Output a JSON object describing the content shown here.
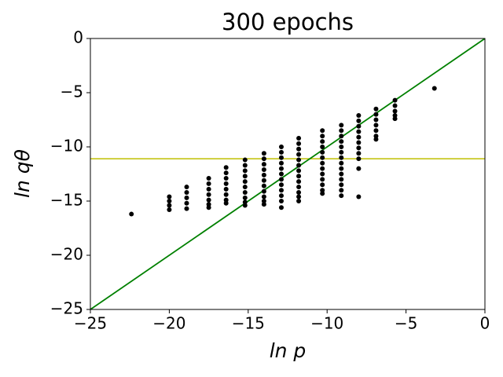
{
  "chart_data": {
    "type": "scatter",
    "title": "300 epochs",
    "xlabel": "ln p",
    "ylabel": "ln qθ",
    "xlim": [
      -25,
      0
    ],
    "ylim": [
      -25,
      0
    ],
    "xticks": [
      {
        "value": -25,
        "label": "−25"
      },
      {
        "value": -20,
        "label": "−20"
      },
      {
        "value": -15,
        "label": "−15"
      },
      {
        "value": -10,
        "label": "−10"
      },
      {
        "value": -5,
        "label": "−5"
      },
      0
    ],
    "yticks": [
      {
        "value": -25,
        "label": "−25"
      },
      {
        "value": -20,
        "label": "−20"
      },
      {
        "value": -15,
        "label": "−15"
      },
      {
        "value": -10,
        "label": "−10"
      },
      {
        "value": -5,
        "label": "−5"
      },
      0
    ],
    "series": [
      {
        "color": "#000000",
        "x": [
          -22.4
        ],
        "values": [
          -16.2
        ]
      },
      {
        "color": "#000000",
        "x": [
          -20.0,
          -20.0,
          -20.0,
          -20.0
        ],
        "values": [
          -14.6,
          -15.0,
          -15.4,
          -15.8
        ]
      },
      {
        "color": "#000000",
        "x": [
          -18.9,
          -18.9,
          -18.9,
          -18.9,
          -18.9
        ],
        "values": [
          -13.7,
          -14.2,
          -14.7,
          -15.2,
          -15.7
        ]
      },
      {
        "color": "#000000",
        "x": [
          -17.5,
          -17.5,
          -17.5,
          -17.5,
          -17.5,
          -17.5,
          -17.5
        ],
        "values": [
          -12.9,
          -13.4,
          -13.9,
          -14.4,
          -14.9,
          -15.3,
          -15.6
        ]
      },
      {
        "color": "#000000",
        "x": [
          -16.4,
          -16.4,
          -16.4,
          -16.4,
          -16.4,
          -16.4,
          -16.4,
          -16.4
        ],
        "values": [
          -11.9,
          -12.4,
          -12.9,
          -13.4,
          -13.9,
          -14.4,
          -14.9,
          -15.2
        ]
      },
      {
        "color": "#000000",
        "x": [
          -15.2,
          -15.2,
          -15.2,
          -15.2,
          -15.2,
          -15.2,
          -15.2,
          -15.2,
          -15.2,
          -15.2
        ],
        "values": [
          -11.2,
          -11.7,
          -12.2,
          -12.7,
          -13.2,
          -13.7,
          -14.2,
          -14.7,
          -15.1,
          -15.4
        ]
      },
      {
        "color": "#000000",
        "x": [
          -14.0,
          -14.0,
          -14.0,
          -14.0,
          -14.0,
          -14.0,
          -14.0,
          -14.0,
          -14.0,
          -14.0,
          -14.0
        ],
        "values": [
          -10.6,
          -11.1,
          -11.6,
          -12.1,
          -12.6,
          -13.1,
          -13.6,
          -14.1,
          -14.6,
          -15.0,
          -15.3
        ]
      },
      {
        "color": "#000000",
        "x": [
          -12.9,
          -12.9,
          -12.9,
          -12.9,
          -12.9,
          -12.9,
          -12.9,
          -12.9,
          -12.9,
          -12.9,
          -12.9,
          -12.9
        ],
        "values": [
          -10.0,
          -10.5,
          -11.0,
          -11.5,
          -12.0,
          -12.5,
          -13.0,
          -13.5,
          -14.0,
          -14.5,
          -15.0,
          -15.6
        ]
      },
      {
        "color": "#000000",
        "x": [
          -11.8,
          -11.8,
          -11.8,
          -11.8,
          -11.8,
          -11.8,
          -11.8,
          -11.8,
          -11.8,
          -11.8,
          -11.8,
          -11.8,
          -11.8
        ],
        "values": [
          -9.2,
          -9.7,
          -10.2,
          -10.7,
          -11.2,
          -11.7,
          -12.2,
          -12.7,
          -13.2,
          -13.7,
          -14.2,
          -14.6,
          -15.0
        ]
      },
      {
        "color": "#000000",
        "x": [
          -10.3,
          -10.3,
          -10.3,
          -10.3,
          -10.3,
          -10.3,
          -10.3,
          -10.3,
          -10.3,
          -10.3,
          -10.3,
          -10.3,
          -10.3
        ],
        "values": [
          -8.5,
          -9.0,
          -9.5,
          -10.0,
          -10.5,
          -11.0,
          -11.5,
          -12.0,
          -12.5,
          -13.0,
          -13.5,
          -14.0,
          -14.3
        ]
      },
      {
        "color": "#000000",
        "x": [
          -9.1,
          -9.1,
          -9.1,
          -9.1,
          -9.1,
          -9.1,
          -9.1,
          -9.1,
          -9.1,
          -9.1,
          -9.1,
          -9.1,
          -9.1,
          -9.1
        ],
        "values": [
          -8.0,
          -8.5,
          -9.0,
          -9.5,
          -10.0,
          -10.5,
          -11.0,
          -11.5,
          -12.0,
          -12.5,
          -13.0,
          -13.5,
          -14.0,
          -14.5
        ]
      },
      {
        "color": "#000000",
        "x": [
          -8.0,
          -8.0,
          -8.0,
          -8.0,
          -8.0,
          -8.0,
          -8.0,
          -8.0,
          -8.0,
          -8.0,
          -8.0
        ],
        "values": [
          -7.1,
          -7.6,
          -8.1,
          -8.6,
          -9.1,
          -9.6,
          -10.1,
          -10.6,
          -11.1,
          -12.0,
          -14.6
        ]
      },
      {
        "color": "#000000",
        "x": [
          -6.9,
          -6.9,
          -6.9,
          -6.9,
          -6.9,
          -6.9,
          -6.9
        ],
        "values": [
          -6.5,
          -7.0,
          -7.5,
          -8.0,
          -8.5,
          -9.0,
          -9.3
        ]
      },
      {
        "color": "#000000",
        "x": [
          -5.7,
          -5.7,
          -5.7,
          -5.7,
          -5.7
        ],
        "values": [
          -5.7,
          -6.2,
          -6.7,
          -7.1,
          -7.4
        ]
      },
      {
        "color": "#000000",
        "x": [
          -3.2
        ],
        "values": [
          -4.6
        ]
      }
    ],
    "lines": [
      {
        "color": "#008000",
        "x": [
          -25,
          0
        ],
        "values": [
          -25,
          0
        ]
      }
    ],
    "hlines": [
      {
        "color": "#bfbf00",
        "value": -11.1
      }
    ]
  }
}
